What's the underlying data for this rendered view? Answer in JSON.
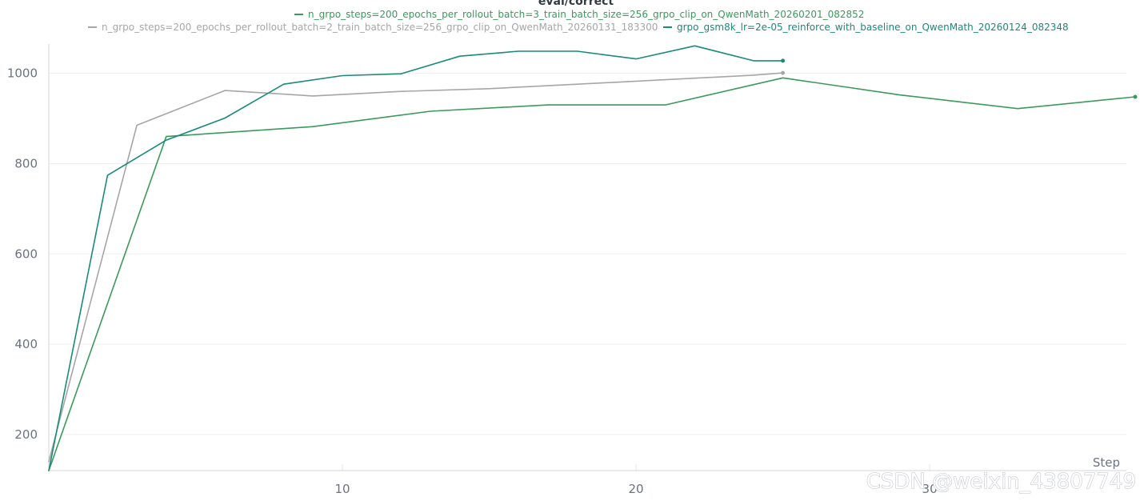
{
  "chart_data": {
    "type": "line",
    "title": "eval/correct",
    "xlabel": "Step",
    "ylabel": "",
    "xlim": [
      0,
      36.7
    ],
    "ylim": [
      120,
      1065
    ],
    "x_ticks": [
      10,
      20,
      30
    ],
    "y_ticks": [
      200,
      400,
      600,
      800,
      1000
    ],
    "grid": true,
    "legend_position": "top-center",
    "series": [
      {
        "name": "n_grpo_steps=200_epochs_per_rollout_batch=3_train_batch_size=256_grpo_clip_on_QwenMath_20260201_082852",
        "color": "#3a9a5b",
        "x": [
          0,
          4,
          9,
          13,
          17,
          21,
          25,
          29,
          33,
          37
        ],
        "y": [
          120,
          860,
          882,
          916,
          930,
          930,
          990,
          952,
          922,
          948
        ]
      },
      {
        "name": "n_grpo_steps=200_epochs_per_rollout_batch=2_train_batch_size=256_grpo_clip_on_QwenMath_20260131_183300",
        "color": "#a6a6a6",
        "x": [
          0,
          3,
          6,
          9,
          12,
          15,
          18,
          21,
          24,
          25
        ],
        "y": [
          140,
          885,
          962,
          950,
          960,
          966,
          976,
          986,
          996,
          1001
        ]
      },
      {
        "name": "grpo_gsm8k_lr=2e-05_reinforce_with_baseline_on_QwenMath_20260124_082348",
        "color": "#1a8a7a",
        "x": [
          0,
          2,
          4,
          6,
          8,
          10,
          12,
          14,
          16,
          18,
          20,
          22,
          24,
          25
        ],
        "y": [
          120,
          774,
          852,
          901,
          976,
          995,
          999,
          1038,
          1049,
          1049,
          1032,
          1061,
          1028,
          1028
        ]
      }
    ]
  },
  "watermark": "CSDN @weixin_43807749"
}
